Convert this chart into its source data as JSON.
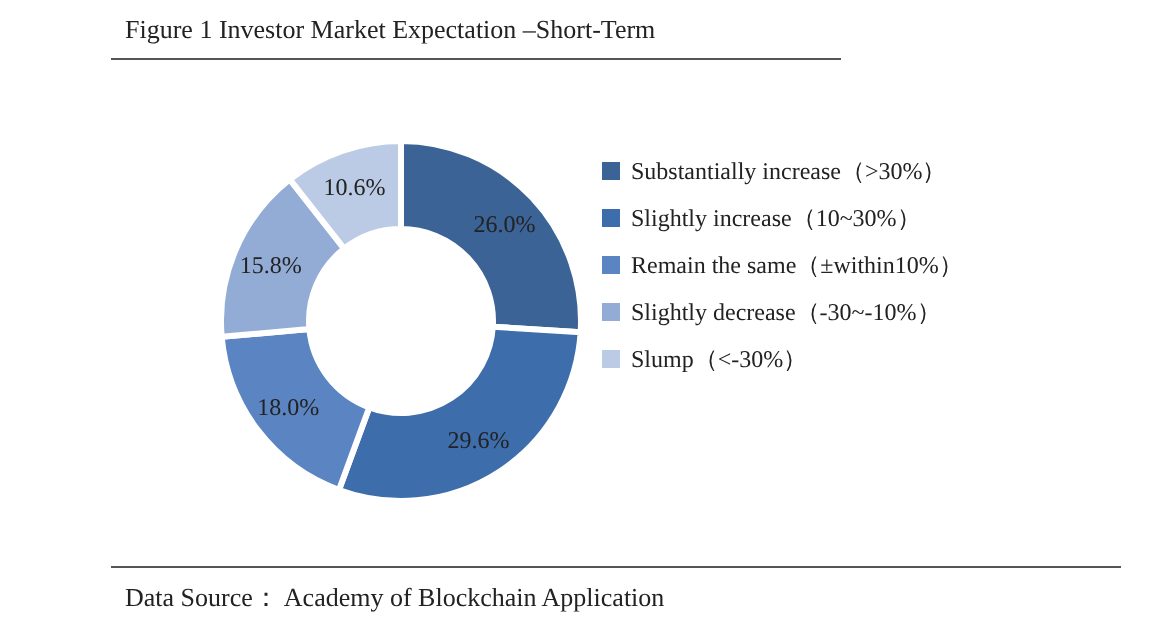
{
  "chart_data": {
    "type": "donut",
    "title": "Figure 1 Investor Market Expectation –Short-Term",
    "categories": [
      "Substantially increase（>30%）",
      "Slightly increase（10~30%）",
      "Remain the same（±within10%）",
      "Slightly decrease（-30~-10%）",
      "Slump（<-30%）"
    ],
    "values": [
      26.0,
      29.6,
      18.0,
      15.8,
      10.6
    ],
    "value_labels": [
      "26.0%",
      "29.6%",
      "18.0%",
      "15.8%",
      "10.6%"
    ],
    "colors": [
      "#3b6396",
      "#3d6dab",
      "#5a85c2",
      "#93acd6",
      "#bccbe5"
    ],
    "legend": "right",
    "annotations": [
      "Data Source： Academy of Blockchain Application"
    ]
  }
}
